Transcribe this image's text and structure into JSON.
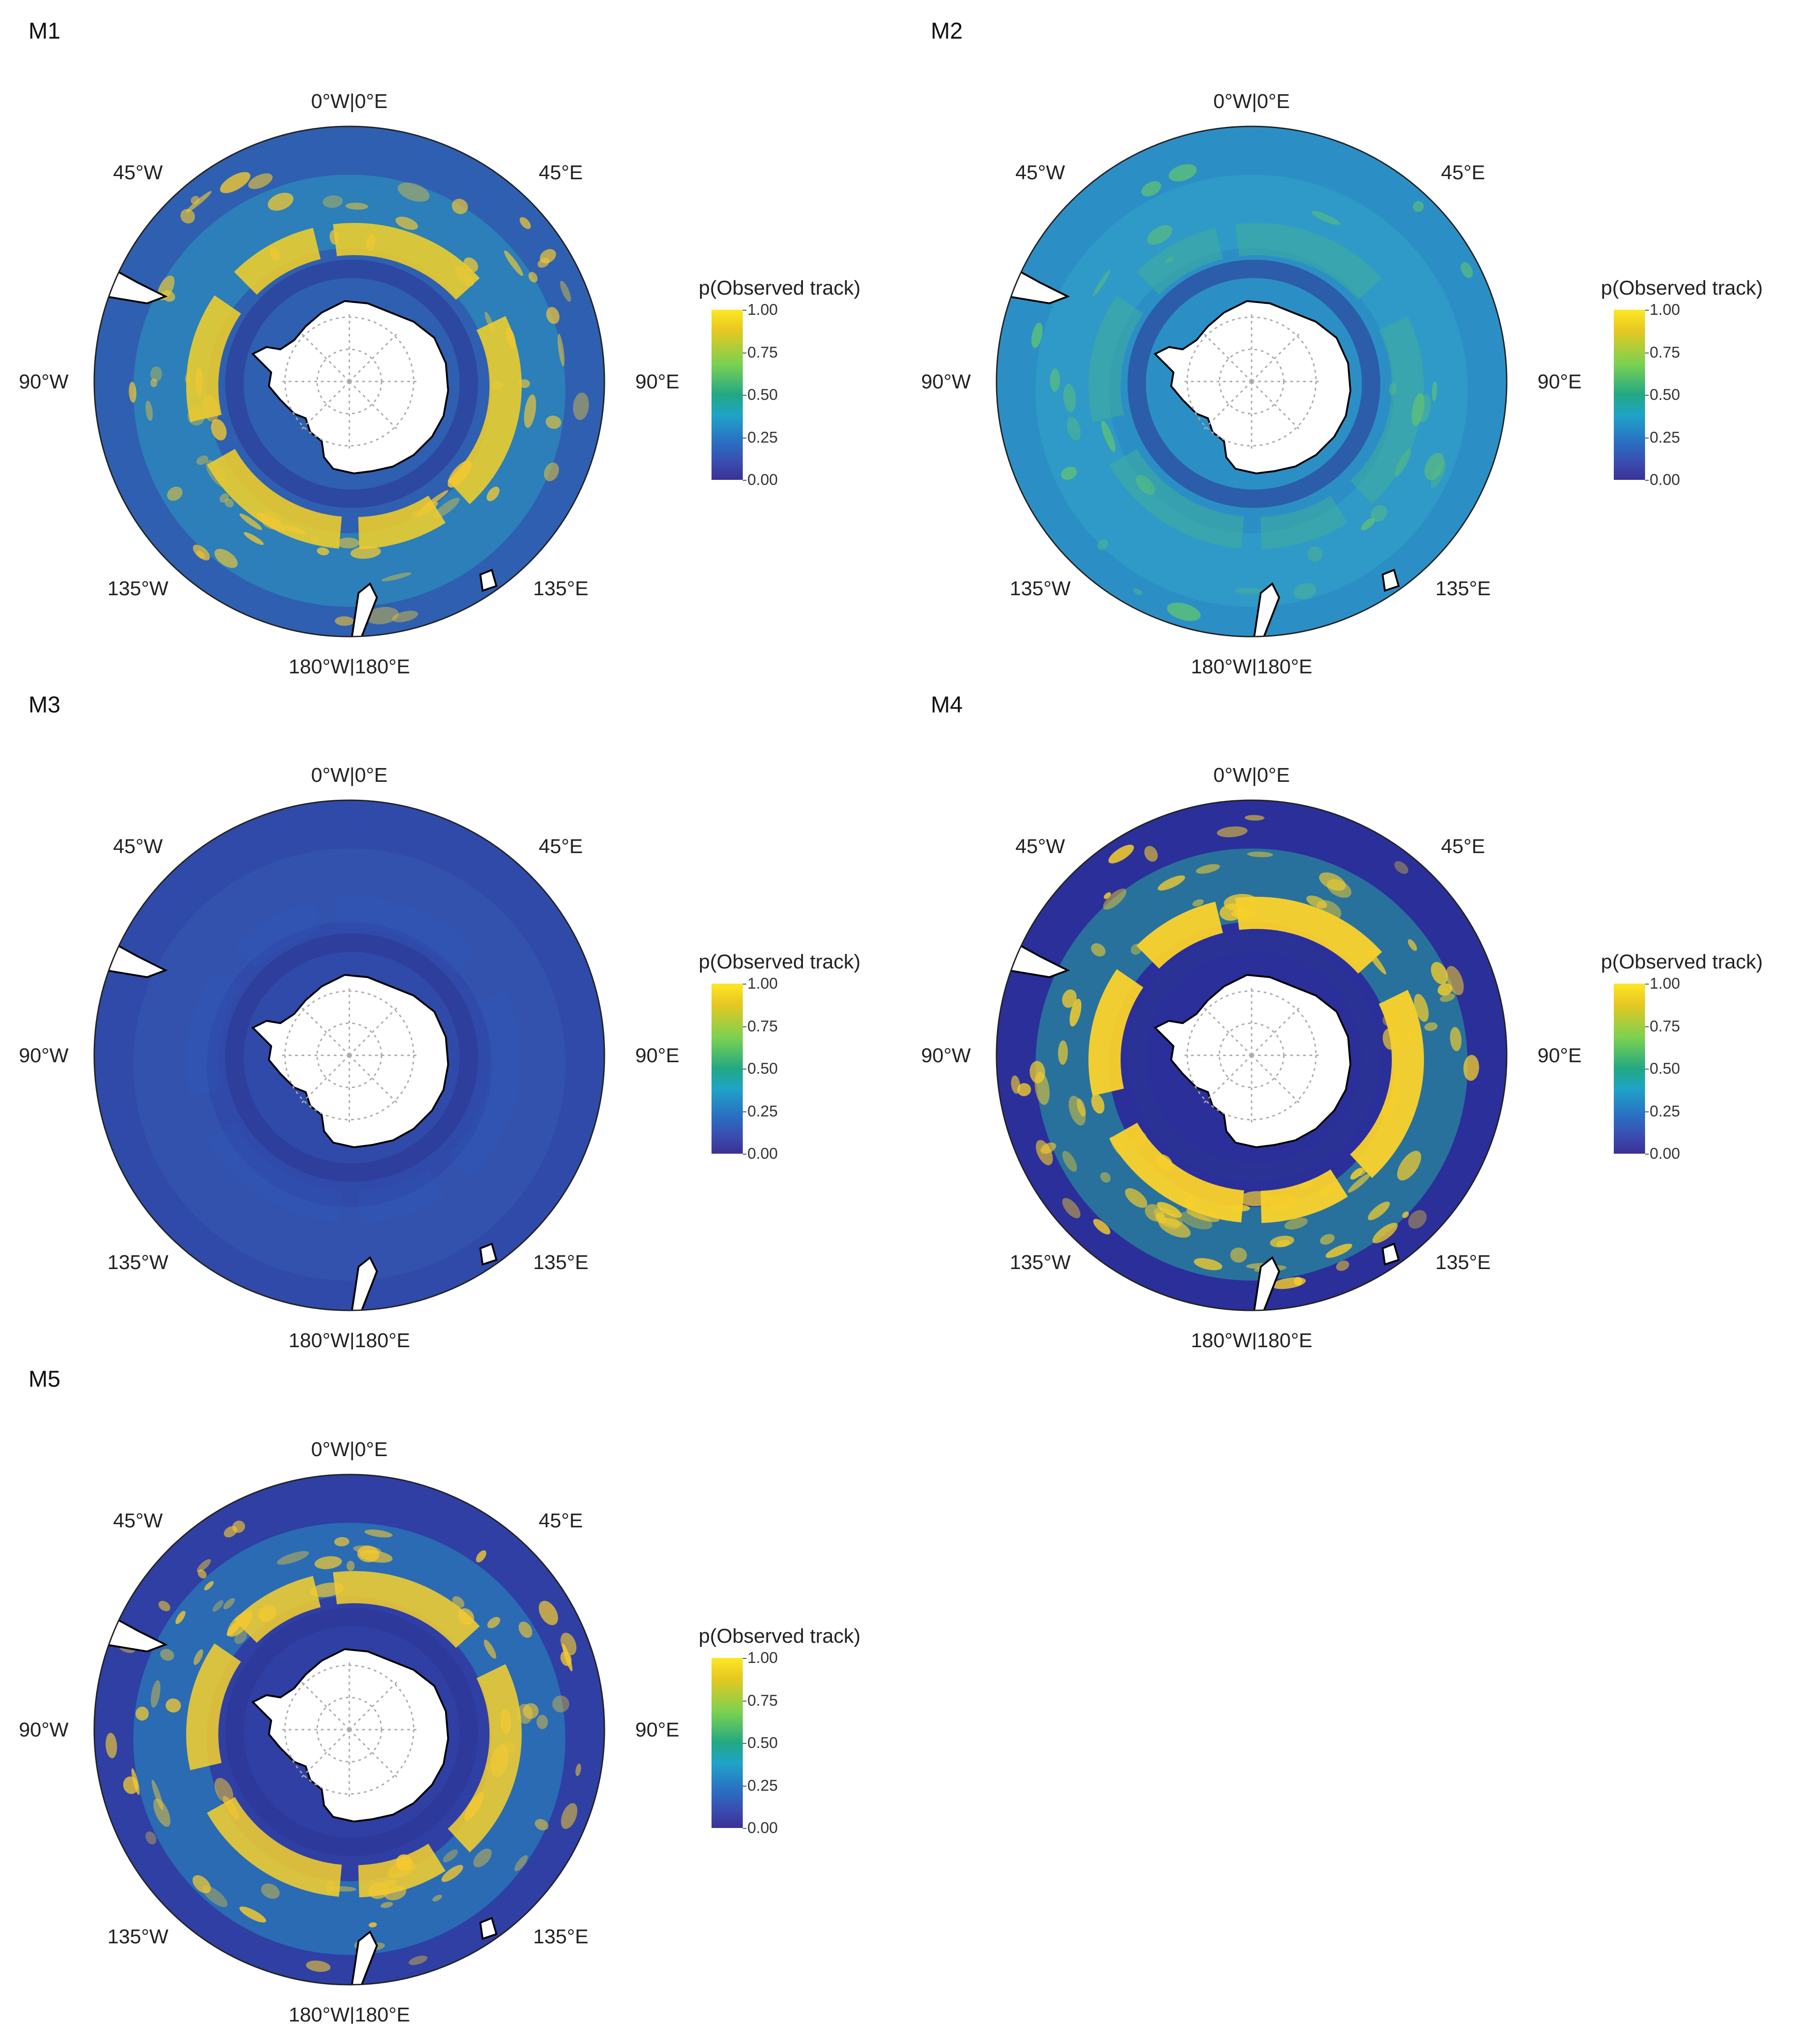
{
  "colorbar": {
    "title": "p(Observed track)",
    "ticks": [
      "1.00",
      "0.75",
      "0.50",
      "0.25",
      "0.00"
    ]
  },
  "compass_labels": {
    "top": "0°W|0°E",
    "bottom": "180°W|180°E",
    "left": "90°W",
    "right": "90°E",
    "upper_left": "45°W",
    "upper_right": "45°E",
    "lower_left": "135°W",
    "lower_right": "135°E"
  },
  "panels": [
    {
      "id": "M1",
      "label": "M1",
      "base_color": "#2f5fb0",
      "pattern": "strong-ring"
    },
    {
      "id": "M2",
      "label": "M2",
      "base_color": "#2b8fc6",
      "pattern": "diffuse"
    },
    {
      "id": "M3",
      "label": "M3",
      "base_color": "#2f4aa8",
      "pattern": "uniform-low"
    },
    {
      "id": "M4",
      "label": "M4",
      "base_color": "#2b2f9a",
      "pattern": "sharp-ring"
    },
    {
      "id": "M5",
      "label": "M5",
      "base_color": "#2f3fa4",
      "pattern": "patchy-ring"
    }
  ]
}
